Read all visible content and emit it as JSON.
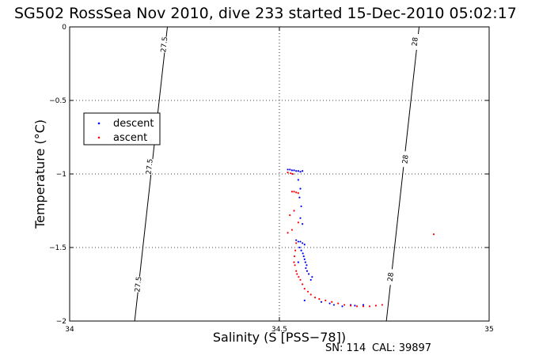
{
  "chart_data": {
    "type": "scatter",
    "title": "SG502 RossSea Nov 2010, dive 233 started 15-Dec-2010 05:02:17",
    "xlabel": "Salinity (S [PSS−78])",
    "ylabel": "Temperature (°C)",
    "xlim": [
      34,
      35
    ],
    "ylim": [
      -2,
      0
    ],
    "xticks": [
      34,
      34.5,
      35
    ],
    "xtick_labels": [
      "34",
      "34.5",
      "35"
    ],
    "yticks": [
      0,
      -0.5,
      -1,
      -1.5,
      -2
    ],
    "ytick_labels": [
      "0",
      "−0.5",
      "−1",
      "−1.5",
      "−2"
    ],
    "grid": true,
    "legend_position": "upper-left",
    "contours": [
      {
        "label": "27.5",
        "points": [
          [
            34.155,
            -2.0
          ],
          [
            34.233,
            0.0
          ]
        ],
        "label_positions": [
          [
            34.225,
            -0.12
          ],
          [
            34.19,
            -0.95
          ],
          [
            34.163,
            -1.75
          ]
        ]
      },
      {
        "label": "28",
        "points": [
          [
            34.755,
            -2.0
          ],
          [
            34.833,
            0.0
          ]
        ],
        "label_positions": [
          [
            34.823,
            -0.1
          ],
          [
            34.8,
            -0.9
          ],
          [
            34.765,
            -1.7
          ]
        ]
      }
    ],
    "series": [
      {
        "name": "descent",
        "color": "#0000ff",
        "points": [
          [
            34.52,
            -0.97
          ],
          [
            34.525,
            -0.97
          ],
          [
            34.53,
            -0.975
          ],
          [
            34.535,
            -0.975
          ],
          [
            34.54,
            -0.98
          ],
          [
            34.545,
            -0.98
          ],
          [
            34.55,
            -0.985
          ],
          [
            34.555,
            -0.98
          ],
          [
            34.545,
            -1.04
          ],
          [
            34.55,
            -1.1
          ],
          [
            34.548,
            -1.16
          ],
          [
            34.552,
            -1.22
          ],
          [
            34.55,
            -1.3
          ],
          [
            34.555,
            -1.34
          ],
          [
            34.54,
            -1.45
          ],
          [
            34.545,
            -1.46
          ],
          [
            34.55,
            -1.46
          ],
          [
            34.555,
            -1.47
          ],
          [
            34.56,
            -1.48
          ],
          [
            34.548,
            -1.5
          ],
          [
            34.552,
            -1.52
          ],
          [
            34.556,
            -1.54
          ],
          [
            34.558,
            -1.56
          ],
          [
            34.56,
            -1.58
          ],
          [
            34.562,
            -1.6
          ],
          [
            34.565,
            -1.62
          ],
          [
            34.563,
            -1.64
          ],
          [
            34.566,
            -1.66
          ],
          [
            34.57,
            -1.68
          ],
          [
            34.575,
            -1.72
          ],
          [
            34.578,
            -1.7
          ],
          [
            34.545,
            -1.6
          ],
          [
            34.56,
            -1.86
          ],
          [
            34.6,
            -1.87
          ],
          [
            34.62,
            -1.88
          ],
          [
            34.63,
            -1.89
          ],
          [
            34.65,
            -1.9
          ],
          [
            34.67,
            -1.89
          ],
          [
            34.68,
            -1.895
          ],
          [
            34.7,
            -1.89
          ]
        ]
      },
      {
        "name": "ascent",
        "color": "#ff0000",
        "points": [
          [
            34.52,
            -0.99
          ],
          [
            34.527,
            -0.995
          ],
          [
            34.532,
            -1.0
          ],
          [
            34.53,
            -1.12
          ],
          [
            34.535,
            -1.12
          ],
          [
            34.54,
            -1.125
          ],
          [
            34.545,
            -1.13
          ],
          [
            34.525,
            -1.28
          ],
          [
            34.535,
            -1.25
          ],
          [
            34.545,
            -1.33
          ],
          [
            34.52,
            -1.4
          ],
          [
            34.53,
            -1.38
          ],
          [
            34.54,
            -1.47
          ],
          [
            34.538,
            -1.52
          ],
          [
            34.536,
            -1.56
          ],
          [
            34.535,
            -1.6
          ],
          [
            34.537,
            -1.62
          ],
          [
            34.54,
            -1.66
          ],
          [
            34.542,
            -1.68
          ],
          [
            34.546,
            -1.7
          ],
          [
            34.55,
            -1.72
          ],
          [
            34.555,
            -1.75
          ],
          [
            34.56,
            -1.78
          ],
          [
            34.568,
            -1.8
          ],
          [
            34.575,
            -1.82
          ],
          [
            34.585,
            -1.84
          ],
          [
            34.595,
            -1.85
          ],
          [
            34.61,
            -1.86
          ],
          [
            34.625,
            -1.87
          ],
          [
            34.64,
            -1.88
          ],
          [
            34.655,
            -1.89
          ],
          [
            34.67,
            -1.895
          ],
          [
            34.685,
            -1.9
          ],
          [
            34.7,
            -1.9
          ],
          [
            34.715,
            -1.9
          ],
          [
            34.73,
            -1.895
          ],
          [
            34.745,
            -1.89
          ],
          [
            34.868,
            -1.41
          ]
        ]
      }
    ]
  },
  "footer": {
    "sn_label": "SN: 114",
    "cal_label": "CAL: 39897"
  }
}
